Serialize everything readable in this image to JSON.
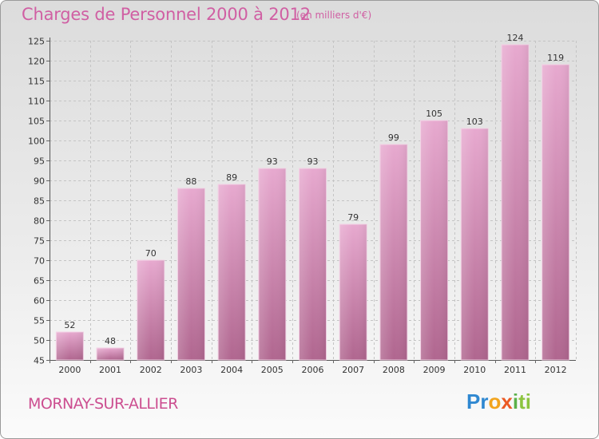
{
  "chart_data": {
    "type": "bar",
    "title": "Charges de Personnel 2000 à 2012",
    "subtitle": "(en milliers d'€)",
    "categories": [
      "2000",
      "2001",
      "2002",
      "2003",
      "2004",
      "2005",
      "2006",
      "2007",
      "2008",
      "2009",
      "2010",
      "2011",
      "2012"
    ],
    "values": [
      52,
      48,
      70,
      88,
      89,
      93,
      93,
      79,
      99,
      105,
      103,
      124,
      119
    ],
    "ylim": [
      45,
      125
    ],
    "yticks": [
      45,
      50,
      55,
      60,
      65,
      70,
      75,
      80,
      85,
      90,
      95,
      100,
      105,
      110,
      115,
      120,
      125
    ],
    "grid": true,
    "bar_color": "#d68cbd"
  },
  "footer": {
    "town": "MORNAY-SUR-ALLIER",
    "logo": {
      "p1": "Pr",
      "p2": "o",
      "p3": "x",
      "p4": "i",
      "p5": "ti"
    }
  }
}
